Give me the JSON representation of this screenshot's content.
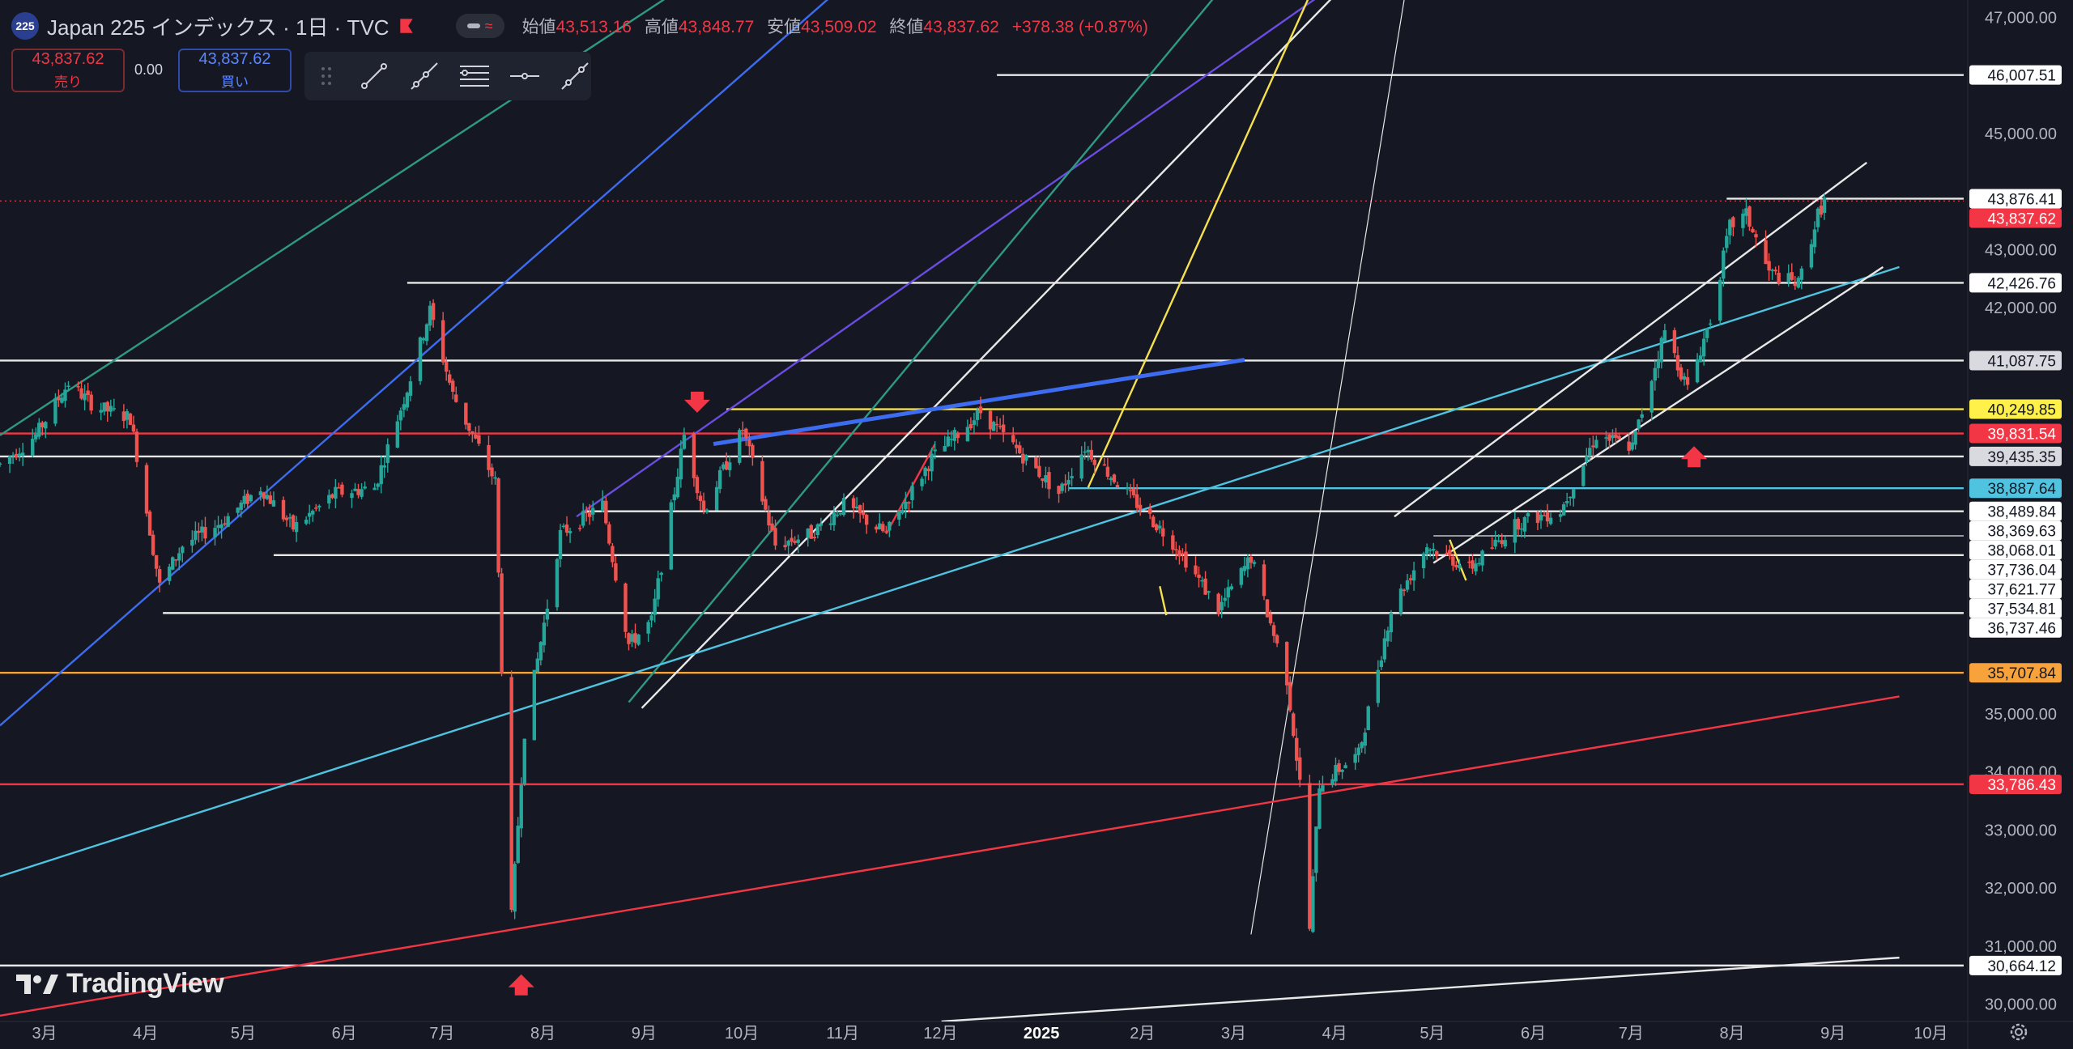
{
  "header": {
    "symbol_badge": "225",
    "title": "Japan 225 インデックス · 1日 · TVC",
    "open_label": "始値",
    "open": "43,513.16",
    "high_label": "高値",
    "high": "43,848.77",
    "low_label": "安値",
    "low": "43,509.02",
    "close_label": "終値",
    "close": "43,837.62",
    "change": "+378.38 (+0.87%)"
  },
  "trade": {
    "sell_price": "43,837.62",
    "sell_label": "売り",
    "spread": "0.00",
    "buy_price": "43,837.62",
    "buy_label": "買い"
  },
  "toolbar": {
    "tools": [
      "trend-line-icon",
      "ray-line-icon",
      "parallel-channel-icon",
      "horizontal-line-icon",
      "extended-line-icon"
    ]
  },
  "branding": {
    "logo_text": "TradingView"
  },
  "colors": {
    "background": "#151822",
    "up": "#26a69a",
    "down": "#ef5350",
    "white_line": "#e8e8e8",
    "red_line": "#f23645",
    "orange_line": "#f7a23b",
    "yellow_line": "#f5e050",
    "cyan_line": "#4fc3e0",
    "blue_line": "#3d6cf0",
    "purple_line": "#6a4ce0",
    "teal_line": "#2e9a85"
  },
  "chart_data": {
    "type": "candlestick",
    "y_axis": {
      "range": [
        29700,
        47300
      ],
      "ticks": [
        30000,
        31000,
        32000,
        33000,
        34000,
        35000,
        42000,
        43000,
        45000,
        47000
      ],
      "tick_labels": [
        "30,000.00",
        "31,000.00",
        "32,000.00",
        "33,000.00",
        "34,000.00",
        "35,000.00",
        "42,000.00",
        "43,000.00",
        "45,000.00",
        "47,000.00"
      ]
    },
    "x_axis": {
      "labels": [
        "3月",
        "4月",
        "5月",
        "6月",
        "7月",
        "8月",
        "9月",
        "10月",
        "11月",
        "12月",
        "2025",
        "2月",
        "3月",
        "4月",
        "5月",
        "6月",
        "7月",
        "8月",
        "9月",
        "10月"
      ],
      "bold_labels": [
        "2025"
      ],
      "start_date": "2024-03-01",
      "end_date": "2025-10-25"
    },
    "price_labels": [
      {
        "text": "46,007.51",
        "value": 46007.51,
        "style": "white"
      },
      {
        "text": "43,876.41",
        "value": 43876.41,
        "style": "white"
      },
      {
        "text": "43,837.62",
        "value": 43837.62,
        "style": "red"
      },
      {
        "text": "42,426.76",
        "value": 42426.76,
        "style": "white"
      },
      {
        "text": "41,087.75",
        "value": 41087.75,
        "style": "gray"
      },
      {
        "text": "40,249.85",
        "value": 40249.85,
        "style": "yellow"
      },
      {
        "text": "39,831.54",
        "value": 39831.54,
        "style": "red"
      },
      {
        "text": "39,435.35",
        "value": 39435.35,
        "style": "gray"
      },
      {
        "text": "38,887.64",
        "value": 38887.64,
        "style": "cyan"
      },
      {
        "text": "38,489.84",
        "value": 38489.84,
        "style": "white"
      },
      {
        "text": "38,369.63",
        "value": 38369.63,
        "style": "white"
      },
      {
        "text": "38,068.01",
        "value": 38068.01,
        "style": "white"
      },
      {
        "text": "37,736.04",
        "value": 37736.04,
        "style": "white"
      },
      {
        "text": "37,621.77",
        "value": 37621.77,
        "style": "white"
      },
      {
        "text": "37,534.81",
        "value": 37534.81,
        "style": "white"
      },
      {
        "text": "36,737.46",
        "value": 36737.46,
        "style": "white"
      },
      {
        "text": "35,707.84",
        "value": 35707.84,
        "style": "orange"
      },
      {
        "text": "33,786.43",
        "value": 33786.43,
        "style": "red"
      },
      {
        "text": "30,664.12",
        "value": 30664.12,
        "style": "white"
      }
    ],
    "horizontal_lines": [
      {
        "value": 46007.51,
        "start": "2025-01-01",
        "color": "white_line"
      },
      {
        "value": 43876.41,
        "start": "2025-08-13",
        "color": "white_line"
      },
      {
        "value": 43837.62,
        "start": "2024-03-01",
        "color": "red_line",
        "dashed": true
      },
      {
        "value": 42426.76,
        "start": "2024-07-04",
        "color": "white_line"
      },
      {
        "value": 41087.75,
        "start": "2024-03-01",
        "color": "white_line"
      },
      {
        "value": 40249.85,
        "start": "2024-10-10",
        "color": "yellow_line"
      },
      {
        "value": 39831.54,
        "start": "2024-03-01",
        "color": "red_line"
      },
      {
        "value": 39435.35,
        "start": "2024-03-01",
        "color": "white_line"
      },
      {
        "value": 38887.64,
        "start": "2025-01-23",
        "color": "cyan_line"
      },
      {
        "value": 38489.84,
        "start": "2024-08-27",
        "color": "white_line"
      },
      {
        "value": 38068.01,
        "start": "2025-05-15",
        "color": "white_line",
        "thin": true
      },
      {
        "value": 37736.04,
        "start": "2024-05-24",
        "color": "white_line"
      },
      {
        "value": 36737.46,
        "start": "2024-04-20",
        "color": "white_line"
      },
      {
        "value": 35707.84,
        "start": "2024-03-01",
        "color": "orange_line"
      },
      {
        "value": 33786.43,
        "start": "2024-03-01",
        "color": "red_line"
      },
      {
        "value": 30664.12,
        "start": "2024-03-01",
        "color": "white_line"
      }
    ],
    "trend_lines": [
      {
        "from": [
          "2024-03-01",
          39800
        ],
        "to": [
          "2024-10-15",
          48200
        ],
        "color": "teal_line"
      },
      {
        "from": [
          "2024-03-01",
          34800
        ],
        "to": [
          "2024-11-20",
          47800
        ],
        "color": "blue_line"
      },
      {
        "from": [
          "2024-08-25",
          38400
        ],
        "to": [
          "2025-04-26",
          48000
        ],
        "color": "purple_line"
      },
      {
        "from": [
          "2024-09-10",
          35200
        ],
        "to": [
          "2025-03-11",
          47500
        ],
        "color": "teal_line"
      },
      {
        "from": [
          "2024-09-14",
          35100
        ],
        "to": [
          "2025-04-15",
          47400
        ],
        "color": "white_line"
      },
      {
        "from": [
          "2025-01-29",
          38900
        ],
        "to": [
          "2025-04-08",
          47500
        ],
        "color": "yellow_line"
      },
      {
        "from": [
          "2025-03-20",
          31200
        ],
        "to": [
          "2025-05-06",
          47300
        ],
        "color": "white_line",
        "thin": true
      },
      {
        "from": [
          "2024-03-01",
          32200
        ],
        "to": [
          "2025-10-05",
          42700
        ],
        "color": "cyan_line"
      },
      {
        "from": [
          "2024-03-01",
          29800
        ],
        "to": [
          "2025-10-05",
          35300
        ],
        "color": "red_line"
      },
      {
        "from": [
          "2024-12-15",
          29700
        ],
        "to": [
          "2025-10-05",
          30800
        ],
        "color": "white_line"
      },
      {
        "from": [
          "2025-05-03",
          38400
        ],
        "to": [
          "2025-09-25",
          44500
        ],
        "color": "white_line"
      },
      {
        "from": [
          "2025-05-15",
          37600
        ],
        "to": [
          "2025-09-30",
          42700
        ],
        "color": "white_line"
      },
      {
        "from": [
          "2024-10-06",
          39650
        ],
        "to": [
          "2025-03-18",
          41100
        ],
        "color": "blue_line",
        "thick": true
      },
      {
        "from": [
          "2024-11-28",
          38100
        ],
        "to": [
          "2024-12-13",
          39650
        ],
        "color": "red_line"
      },
      {
        "from": [
          "2025-05-20",
          38000
        ],
        "to": [
          "2025-05-25",
          37300
        ],
        "color": "yellow_line"
      },
      {
        "from": [
          "2025-02-20",
          37200
        ],
        "to": [
          "2025-02-22",
          36700
        ],
        "color": "yellow_line"
      }
    ],
    "arrows": [
      {
        "date": "2024-10-01",
        "value": 40300,
        "dir": "down"
      },
      {
        "date": "2024-08-08",
        "value": 30400,
        "dir": "up"
      },
      {
        "date": "2025-08-03",
        "value": 39500,
        "dir": "up"
      }
    ],
    "price_path": [
      [
        "2024-03-01",
        39300
      ],
      [
        "2024-03-12",
        39800
      ],
      [
        "2024-03-22",
        40700
      ],
      [
        "2024-03-30",
        40300
      ],
      [
        "2024-04-10",
        40100
      ],
      [
        "2024-04-19",
        37200
      ],
      [
        "2024-04-26",
        37900
      ],
      [
        "2024-05-08",
        38300
      ],
      [
        "2024-05-20",
        38900
      ],
      [
        "2024-05-30",
        38200
      ],
      [
        "2024-06-12",
        38800
      ],
      [
        "2024-06-24",
        38900
      ],
      [
        "2024-07-04",
        40600
      ],
      [
        "2024-07-11",
        41950
      ],
      [
        "2024-07-18",
        40500
      ],
      [
        "2024-07-31",
        39000
      ],
      [
        "2024-08-02",
        35800
      ],
      [
        "2024-08-05",
        31500
      ],
      [
        "2024-08-09",
        34700
      ],
      [
        "2024-08-20",
        38100
      ],
      [
        "2024-09-02",
        38600
      ],
      [
        "2024-09-10",
        36200
      ],
      [
        "2024-09-17",
        36600
      ],
      [
        "2024-09-27",
        39800
      ],
      [
        "2024-10-03",
        38500
      ],
      [
        "2024-10-15",
        39900
      ],
      [
        "2024-10-25",
        37900
      ],
      [
        "2024-11-05",
        38100
      ],
      [
        "2024-11-15",
        38600
      ],
      [
        "2024-11-28",
        38100
      ],
      [
        "2024-12-12",
        39400
      ],
      [
        "2024-12-27",
        40200
      ],
      [
        "2025-01-08",
        39500
      ],
      [
        "2025-01-20",
        38800
      ],
      [
        "2025-01-28",
        39600
      ],
      [
        "2025-02-10",
        38800
      ],
      [
        "2025-02-25",
        37900
      ],
      [
        "2025-03-10",
        36800
      ],
      [
        "2025-03-20",
        37700
      ],
      [
        "2025-03-31",
        35600
      ],
      [
        "2025-04-04",
        33800
      ],
      [
        "2025-04-07",
        31300
      ],
      [
        "2025-04-10",
        33800
      ],
      [
        "2025-04-22",
        34300
      ],
      [
        "2025-05-02",
        36800
      ],
      [
        "2025-05-13",
        37900
      ],
      [
        "2025-05-26",
        37500
      ],
      [
        "2025-06-10",
        38300
      ],
      [
        "2025-06-23",
        38500
      ],
      [
        "2025-07-04",
        39800
      ],
      [
        "2025-07-15",
        39600
      ],
      [
        "2025-07-25",
        41600
      ],
      [
        "2025-08-01",
        40600
      ],
      [
        "2025-08-08",
        41800
      ],
      [
        "2025-08-14",
        43400
      ],
      [
        "2025-08-19",
        43600
      ],
      [
        "2025-08-26",
        42600
      ],
      [
        "2025-09-04",
        42400
      ],
      [
        "2025-09-10",
        43600
      ],
      [
        "2025-09-12",
        43837.62
      ]
    ]
  }
}
